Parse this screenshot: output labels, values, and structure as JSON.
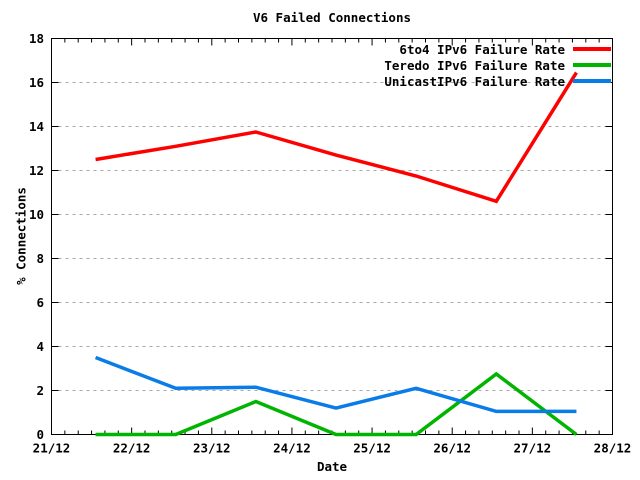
{
  "chart_data": {
    "type": "line",
    "title": "V6 Failed Connections",
    "xlabel": "Date",
    "ylabel": "% Connections",
    "xlim": [
      21,
      28
    ],
    "ylim": [
      0,
      18
    ],
    "grid": "horizontal-dashed",
    "legend_position": "top-right-inside",
    "xticks": {
      "positions": [
        21,
        22,
        23,
        24,
        25,
        26,
        27,
        28
      ],
      "labels": [
        "21/12",
        "22/12",
        "23/12",
        "24/12",
        "25/12",
        "26/12",
        "27/12",
        "28/12"
      ]
    },
    "yticks": {
      "positions": [
        0,
        2,
        4,
        6,
        8,
        10,
        12,
        14,
        16,
        18
      ],
      "labels": [
        "0",
        "2",
        "4",
        "6",
        "8",
        "10",
        "12",
        "14",
        "16",
        "18"
      ]
    },
    "minor_x_divisions": 6,
    "x": [
      21.55,
      22.55,
      23.55,
      24.55,
      25.55,
      26.55,
      27.55
    ],
    "series": [
      {
        "name": "6to4 IPv6 Failure Rate",
        "color": "#ff0000",
        "values": [
          12.5,
          13.1,
          13.75,
          12.7,
          11.75,
          10.6,
          16.45
        ]
      },
      {
        "name": "Teredo IPv6 Failure Rate",
        "color": "#00b400",
        "values": [
          0,
          0,
          1.5,
          0,
          0,
          2.75,
          0
        ]
      },
      {
        "name": "UnicastIPv6 Failure Rate",
        "color": "#0a7ce8",
        "values": [
          3.5,
          2.1,
          2.15,
          1.2,
          2.1,
          1.05,
          1.05
        ]
      }
    ],
    "colors": {
      "grid": "#a8a8a8",
      "frame": "#000000",
      "background": "#ffffff",
      "text": "#000000"
    }
  }
}
